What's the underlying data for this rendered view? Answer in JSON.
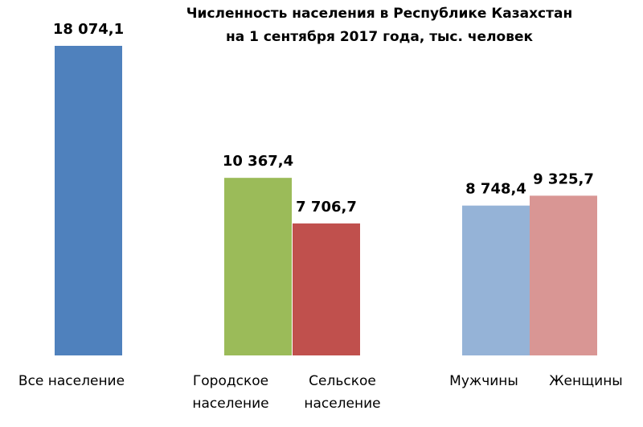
{
  "chart_data": {
    "type": "bar",
    "title": [
      "Численность населения  в Республике  Казахстан",
      "на 1 сентября 2017 года, тыс. человек"
    ],
    "xlabel": "",
    "ylabel": "",
    "ylim": [
      0,
      18074.1
    ],
    "grid": false,
    "legend": "none",
    "bars": [
      {
        "category": [
          "Все население"
        ],
        "value": 18074.1,
        "label": "18 074,1",
        "color": "#4f81bd"
      },
      {
        "category": [
          "Городское",
          "население"
        ],
        "value": 10367.4,
        "label": "10 367,4",
        "color": "#9bbb59"
      },
      {
        "category": [
          "Сельское",
          "население"
        ],
        "value": 7706.7,
        "label": "7 706,7",
        "color": "#c0504d"
      },
      {
        "category": [
          "Мужчины"
        ],
        "value": 8748.4,
        "label": "8 748,4",
        "color": "#95b3d7"
      },
      {
        "category": [
          "Женщины"
        ],
        "value": 9325.7,
        "label": "9 325,7",
        "color": "#d99694"
      }
    ]
  }
}
